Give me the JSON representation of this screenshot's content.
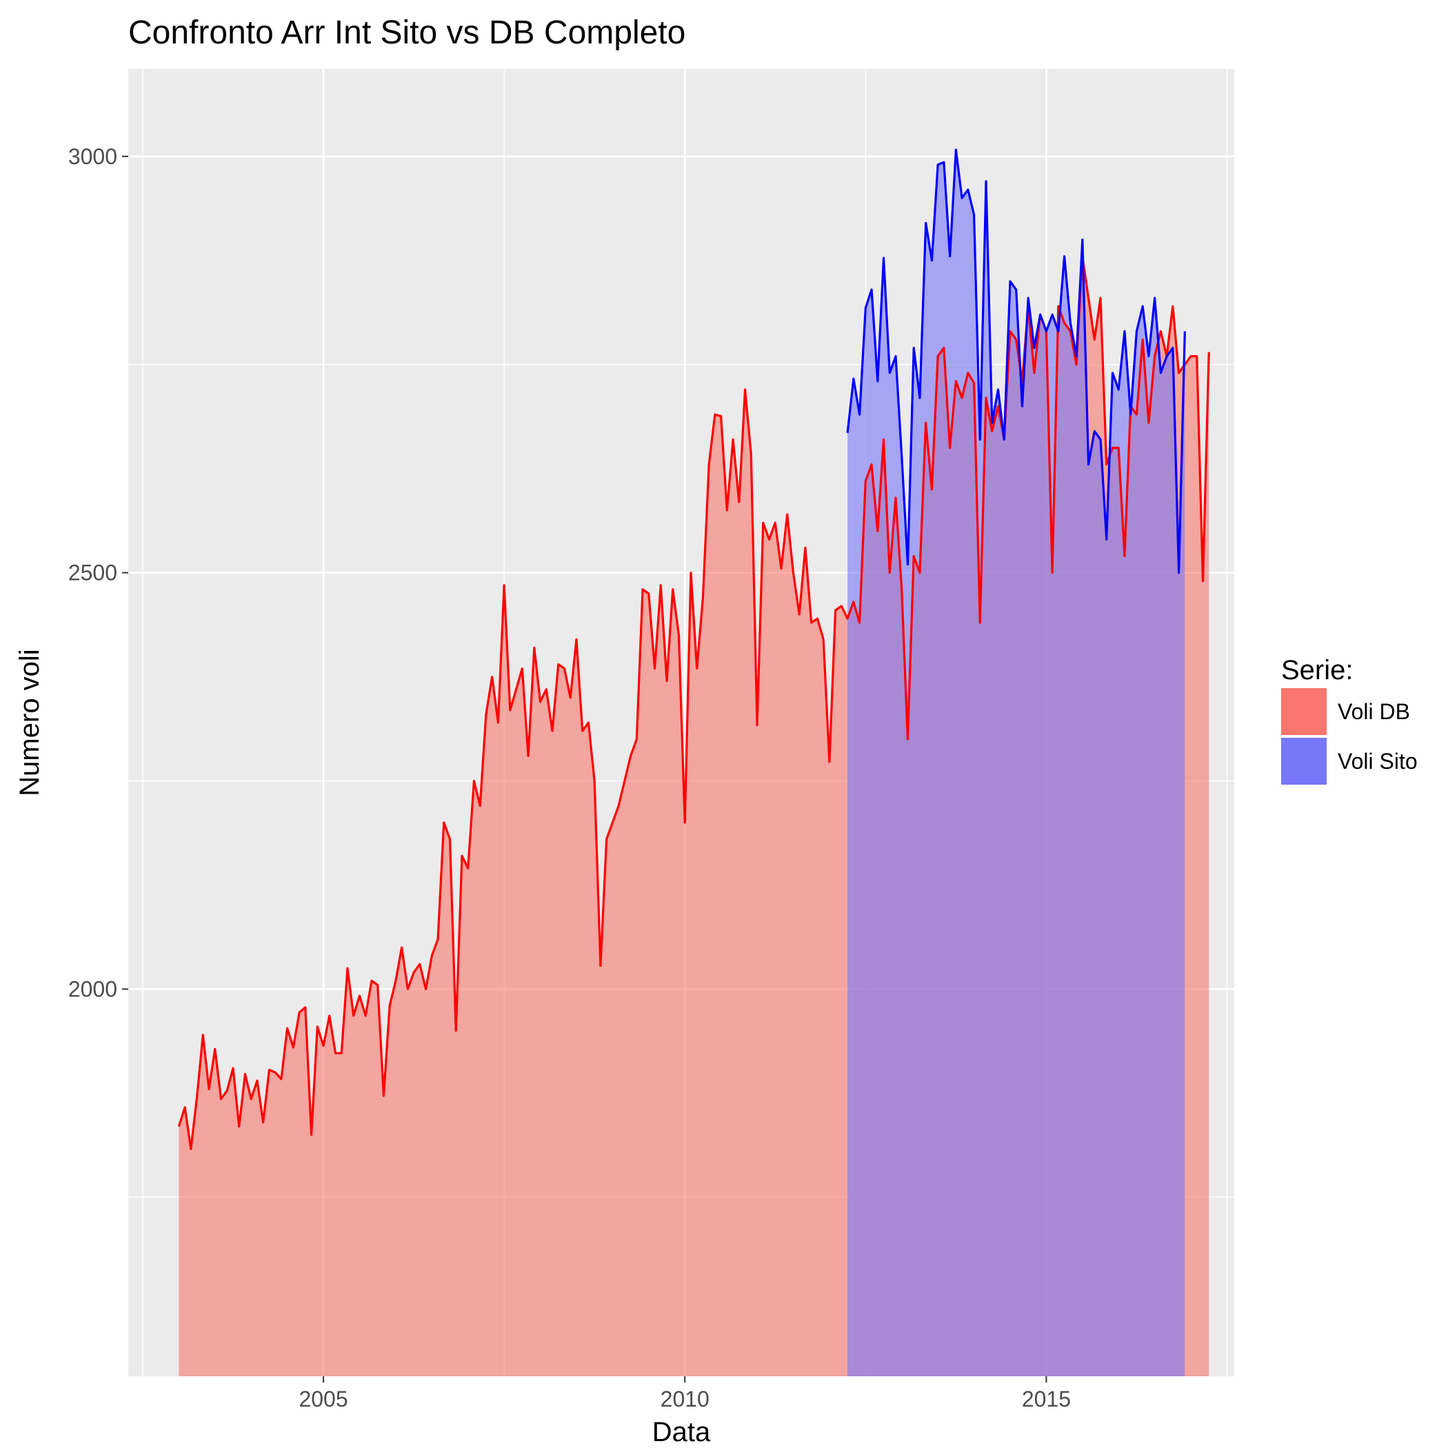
{
  "chart_data": {
    "type": "area",
    "title": "Confronto Arr Int Sito vs DB Completo",
    "xlabel": "Data",
    "ylabel": "Numero voli",
    "xlim": [
      2002.3,
      2017.6
    ],
    "ylim": [
      1535,
      3105
    ],
    "x_ticks": [
      2005,
      2010,
      2015
    ],
    "x_tick_labels": [
      "2005",
      "2010",
      "2015"
    ],
    "x_minor_ticks": [
      2002.5,
      2007.5,
      2012.5,
      2017.5
    ],
    "y_ticks": [
      2000,
      2500,
      3000
    ],
    "y_tick_labels": [
      "2000",
      "2500",
      "3000"
    ],
    "y_minor_ticks": [
      1750,
      2250,
      2750
    ],
    "grid": true,
    "legend": {
      "title": "Serie:",
      "placement": "right"
    },
    "series": [
      {
        "name": "Voli DB",
        "line_color": "#ff0000",
        "fill_color": "#f8766d",
        "start": 2003.0,
        "step": 0.08333,
        "values": [
          1835,
          1858,
          1808,
          1870,
          1945,
          1880,
          1928,
          1868,
          1878,
          1905,
          1835,
          1898,
          1868,
          1890,
          1840,
          1903,
          1900,
          1892,
          1953,
          1930,
          1972,
          1978,
          1825,
          1955,
          1932,
          1968,
          1923,
          1923,
          2025,
          1968,
          1992,
          1968,
          2010,
          2005,
          1872,
          1980,
          2010,
          2050,
          2000,
          2020,
          2030,
          2000,
          2040,
          2060,
          2200,
          2180,
          1950,
          2160,
          2145,
          2250,
          2220,
          2330,
          2375,
          2320,
          2485,
          2335,
          2360,
          2385,
          2280,
          2410,
          2345,
          2360,
          2310,
          2390,
          2385,
          2350,
          2420,
          2310,
          2320,
          2250,
          2028,
          2180,
          2200,
          2220,
          2250,
          2280,
          2300,
          2480,
          2475,
          2385,
          2485,
          2370,
          2480,
          2425,
          2200,
          2500,
          2385,
          2470,
          2630,
          2690,
          2688,
          2575,
          2660,
          2585,
          2720,
          2642,
          2317,
          2560,
          2540,
          2560,
          2505,
          2570,
          2500,
          2450,
          2530,
          2440,
          2445,
          2420,
          2273,
          2455,
          2460,
          2445,
          2465,
          2440,
          2610,
          2630,
          2550,
          2660,
          2500,
          2590,
          2480,
          2300,
          2520,
          2500,
          2680,
          2600,
          2760,
          2770,
          2650,
          2730,
          2710,
          2740,
          2728,
          2440,
          2710,
          2670,
          2700,
          2660,
          2790,
          2780,
          2730,
          2820,
          2740,
          2810,
          2790,
          2500,
          2820,
          2800,
          2790,
          2750,
          2880,
          2830,
          2780,
          2830,
          2630,
          2650,
          2650,
          2520,
          2700,
          2690,
          2780,
          2680,
          2760,
          2790,
          2760,
          2820,
          2740,
          2750,
          2760,
          2760,
          2490,
          2765
        ]
      },
      {
        "name": "Voli Sito",
        "line_color": "#0000ff",
        "fill_color": "#7777f8",
        "start": 2012.25,
        "step": 0.08333,
        "values": [
          2668,
          2733,
          2690,
          2818,
          2840,
          2730,
          2878,
          2740,
          2760,
          2640,
          2510,
          2770,
          2710,
          2920,
          2875,
          2990,
          2993,
          2880,
          3008,
          2950,
          2960,
          2930,
          2660,
          2970,
          2680,
          2720,
          2660,
          2850,
          2840,
          2700,
          2830,
          2770,
          2810,
          2790,
          2810,
          2790,
          2880,
          2800,
          2760,
          2900,
          2630,
          2670,
          2660,
          2540,
          2740,
          2720,
          2790,
          2690,
          2790,
          2820,
          2760,
          2830,
          2740,
          2760,
          2770,
          2500,
          2790
        ]
      }
    ]
  }
}
